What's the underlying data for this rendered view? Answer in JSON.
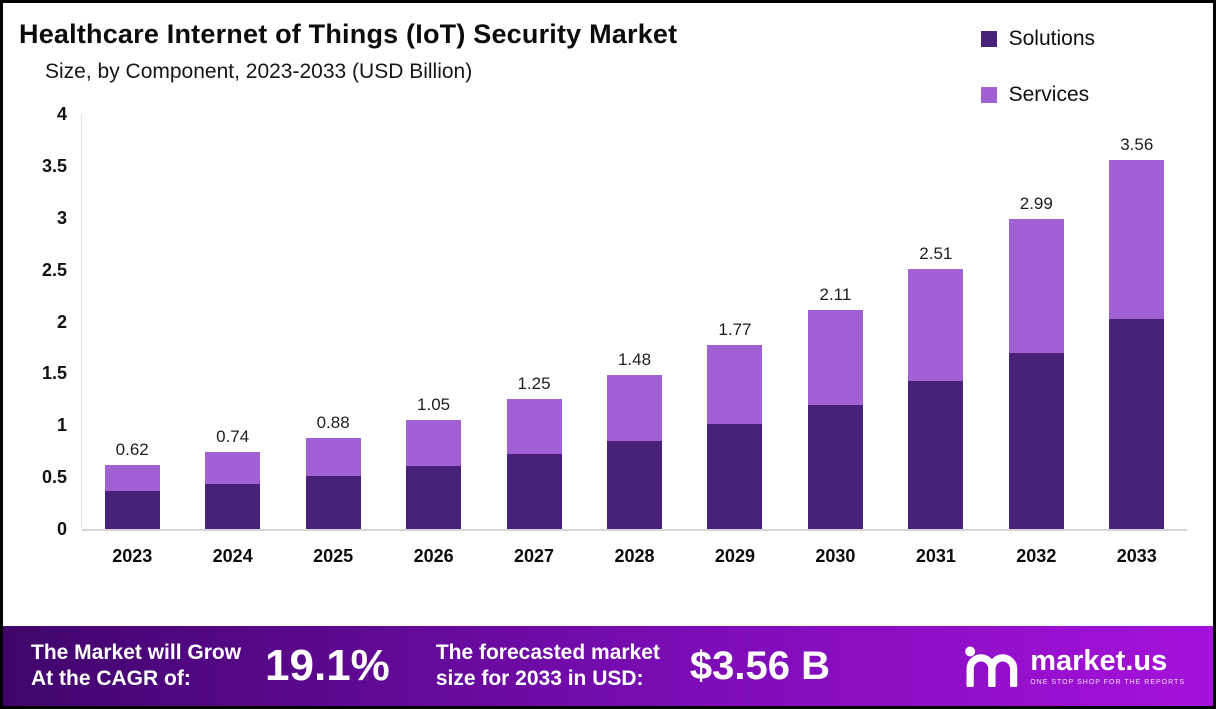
{
  "title": "Healthcare Internet of Things (IoT) Security Market",
  "subtitle": "Size, by Component, 2023-2033 (USD Billion)",
  "legend": [
    {
      "label": "Solutions",
      "color": "#482178"
    },
    {
      "label": "Services",
      "color": "#a160d4"
    }
  ],
  "chart_data": {
    "type": "bar",
    "stacked": true,
    "title": "Healthcare Internet of Things (IoT) Security Market Size, by Component, 2023-2033 (USD Billion)",
    "categories": [
      "2023",
      "2024",
      "2025",
      "2026",
      "2027",
      "2028",
      "2029",
      "2030",
      "2031",
      "2032",
      "2033"
    ],
    "series": [
      {
        "name": "Solutions",
        "color": "#482178",
        "values": [
          0.37,
          0.43,
          0.51,
          0.61,
          0.72,
          0.85,
          1.01,
          1.2,
          1.43,
          1.7,
          2.02
        ]
      },
      {
        "name": "Services",
        "color": "#a160d4",
        "values": [
          0.25,
          0.31,
          0.37,
          0.44,
          0.53,
          0.63,
          0.76,
          0.91,
          1.08,
          1.29,
          1.54
        ]
      }
    ],
    "totals": [
      "0.62",
      "0.74",
      "0.88",
      "1.05",
      "1.25",
      "1.48",
      "1.77",
      "2.11",
      "2.51",
      "2.99",
      "3.56"
    ],
    "ylim": [
      0,
      4
    ],
    "yticks": [
      0,
      0.5,
      1,
      1.5,
      2,
      2.5,
      3,
      3.5,
      4
    ],
    "grid": false,
    "legend_position": "top-right"
  },
  "banner": {
    "cagr_line1": "The Market will Grow",
    "cagr_line2": "At the CAGR of:",
    "cagr_value": "19.1%",
    "forecast_line1": "The forecasted market",
    "forecast_line2": "size for 2033 in USD:",
    "forecast_value": "$3.56 B",
    "logo_text": "market.us",
    "logo_tagline": "ONE STOP SHOP FOR THE REPORTS"
  }
}
